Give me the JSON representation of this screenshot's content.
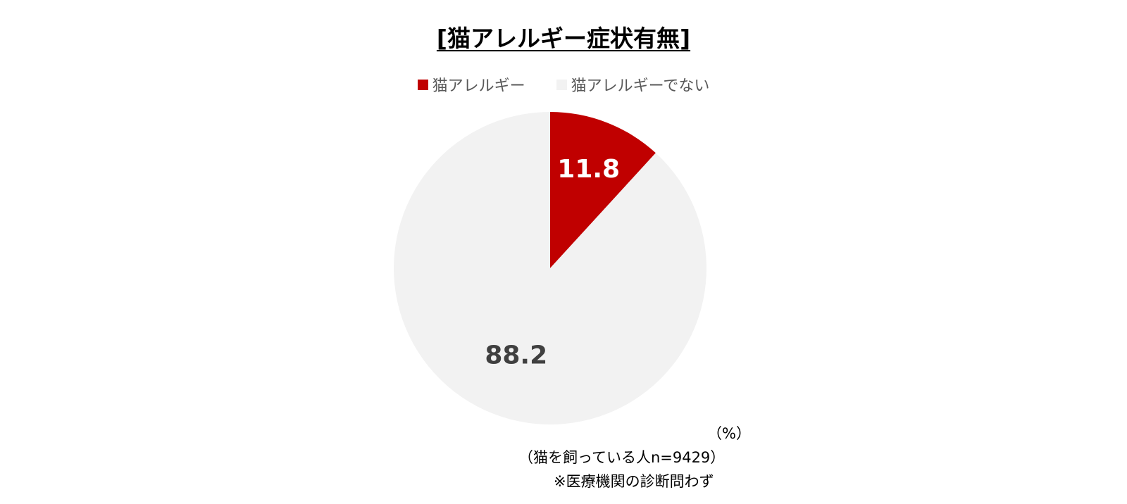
{
  "chart_data": {
    "type": "pie",
    "title": "[猫アレルギー症状有無]",
    "categories": [
      "猫アレルギー",
      "猫アレルギーでない"
    ],
    "values": [
      11.8,
      88.2
    ],
    "colors": [
      "#c00000",
      "#f2f2f2"
    ],
    "label_colors": [
      "#ffffff",
      "#404040"
    ],
    "start_angle_deg": 0,
    "direction": "clockwise",
    "legend_position": "top",
    "unit_note": "（%）",
    "sample_note": "（猫を飼っている人n=9429）",
    "footnote": "※医療機関の診断問わず"
  }
}
